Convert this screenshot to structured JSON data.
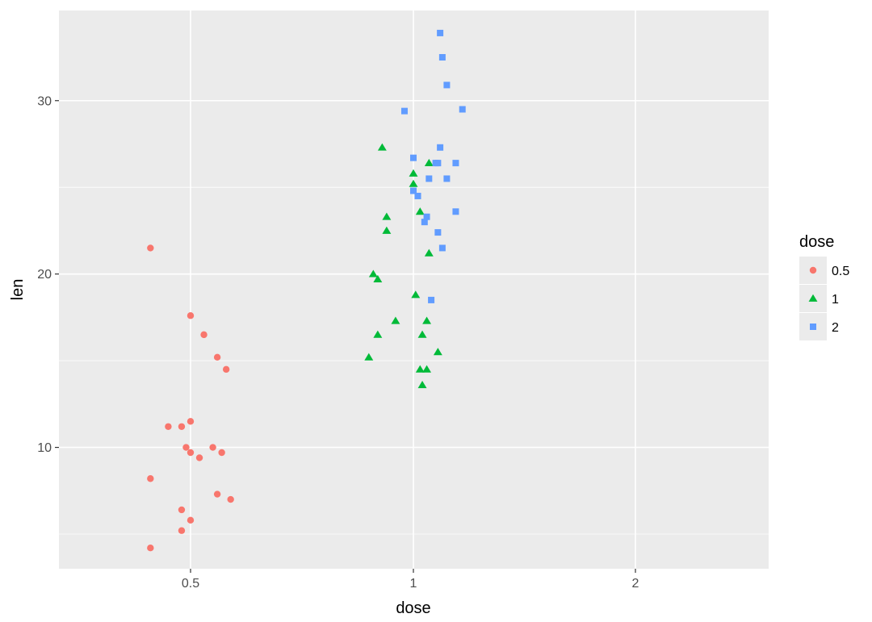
{
  "chart_data": {
    "type": "scatter",
    "xlabel": "dose",
    "ylabel": "len",
    "x_categories": [
      "0.5",
      "1",
      "2"
    ],
    "ylim": [
      3.0,
      35.2
    ],
    "y_ticks": [
      10,
      20,
      30
    ],
    "y_minor_ticks": [
      5,
      15,
      25
    ],
    "grid": true,
    "panel_background": "#EBEBEB",
    "legend": {
      "title": "dose",
      "position": "right"
    },
    "series": [
      {
        "name": "0.5",
        "shape": "circle",
        "color": "#F8766D",
        "points": [
          [
            0.41,
            21.5
          ],
          [
            0.5,
            17.6
          ],
          [
            0.53,
            16.5
          ],
          [
            0.56,
            15.2
          ],
          [
            0.58,
            14.5
          ],
          [
            0.45,
            11.2
          ],
          [
            0.48,
            11.2
          ],
          [
            0.5,
            11.5
          ],
          [
            0.49,
            10.0
          ],
          [
            0.5,
            9.7
          ],
          [
            0.55,
            10.0
          ],
          [
            0.57,
            9.7
          ],
          [
            0.52,
            9.4
          ],
          [
            0.41,
            8.2
          ],
          [
            0.56,
            7.3
          ],
          [
            0.59,
            7.0
          ],
          [
            0.48,
            6.4
          ],
          [
            0.5,
            5.8
          ],
          [
            0.48,
            5.2
          ],
          [
            0.41,
            4.2
          ]
        ]
      },
      {
        "name": "1",
        "shape": "triangle",
        "color": "#00BA38",
        "points": [
          [
            0.93,
            27.3
          ],
          [
            1.07,
            26.4
          ],
          [
            1.0,
            25.8
          ],
          [
            1.0,
            25.2
          ],
          [
            0.94,
            23.3
          ],
          [
            1.03,
            23.6
          ],
          [
            0.94,
            22.5
          ],
          [
            1.07,
            21.2
          ],
          [
            0.91,
            20.0
          ],
          [
            0.92,
            19.7
          ],
          [
            1.01,
            18.8
          ],
          [
            0.96,
            17.3
          ],
          [
            1.06,
            17.3
          ],
          [
            0.92,
            16.5
          ],
          [
            1.04,
            16.5
          ],
          [
            0.9,
            15.2
          ],
          [
            1.11,
            15.5
          ],
          [
            1.03,
            14.5
          ],
          [
            1.06,
            14.5
          ],
          [
            1.04,
            13.6
          ]
        ]
      },
      {
        "name": "2",
        "shape": "square",
        "color": "#619CFF",
        "points": [
          [
            1.12,
            33.9
          ],
          [
            1.13,
            32.5
          ],
          [
            1.15,
            30.9
          ],
          [
            1.22,
            29.5
          ],
          [
            0.98,
            29.4
          ],
          [
            1.12,
            27.3
          ],
          [
            1.0,
            26.7
          ],
          [
            1.1,
            26.4
          ],
          [
            1.11,
            26.4
          ],
          [
            1.19,
            26.4
          ],
          [
            1.07,
            25.5
          ],
          [
            1.15,
            25.5
          ],
          [
            1.0,
            24.8
          ],
          [
            1.02,
            24.5
          ],
          [
            1.06,
            23.3
          ],
          [
            1.19,
            23.6
          ],
          [
            1.05,
            23.0
          ],
          [
            1.11,
            22.4
          ],
          [
            1.13,
            21.5
          ],
          [
            1.08,
            18.5
          ]
        ]
      }
    ]
  }
}
